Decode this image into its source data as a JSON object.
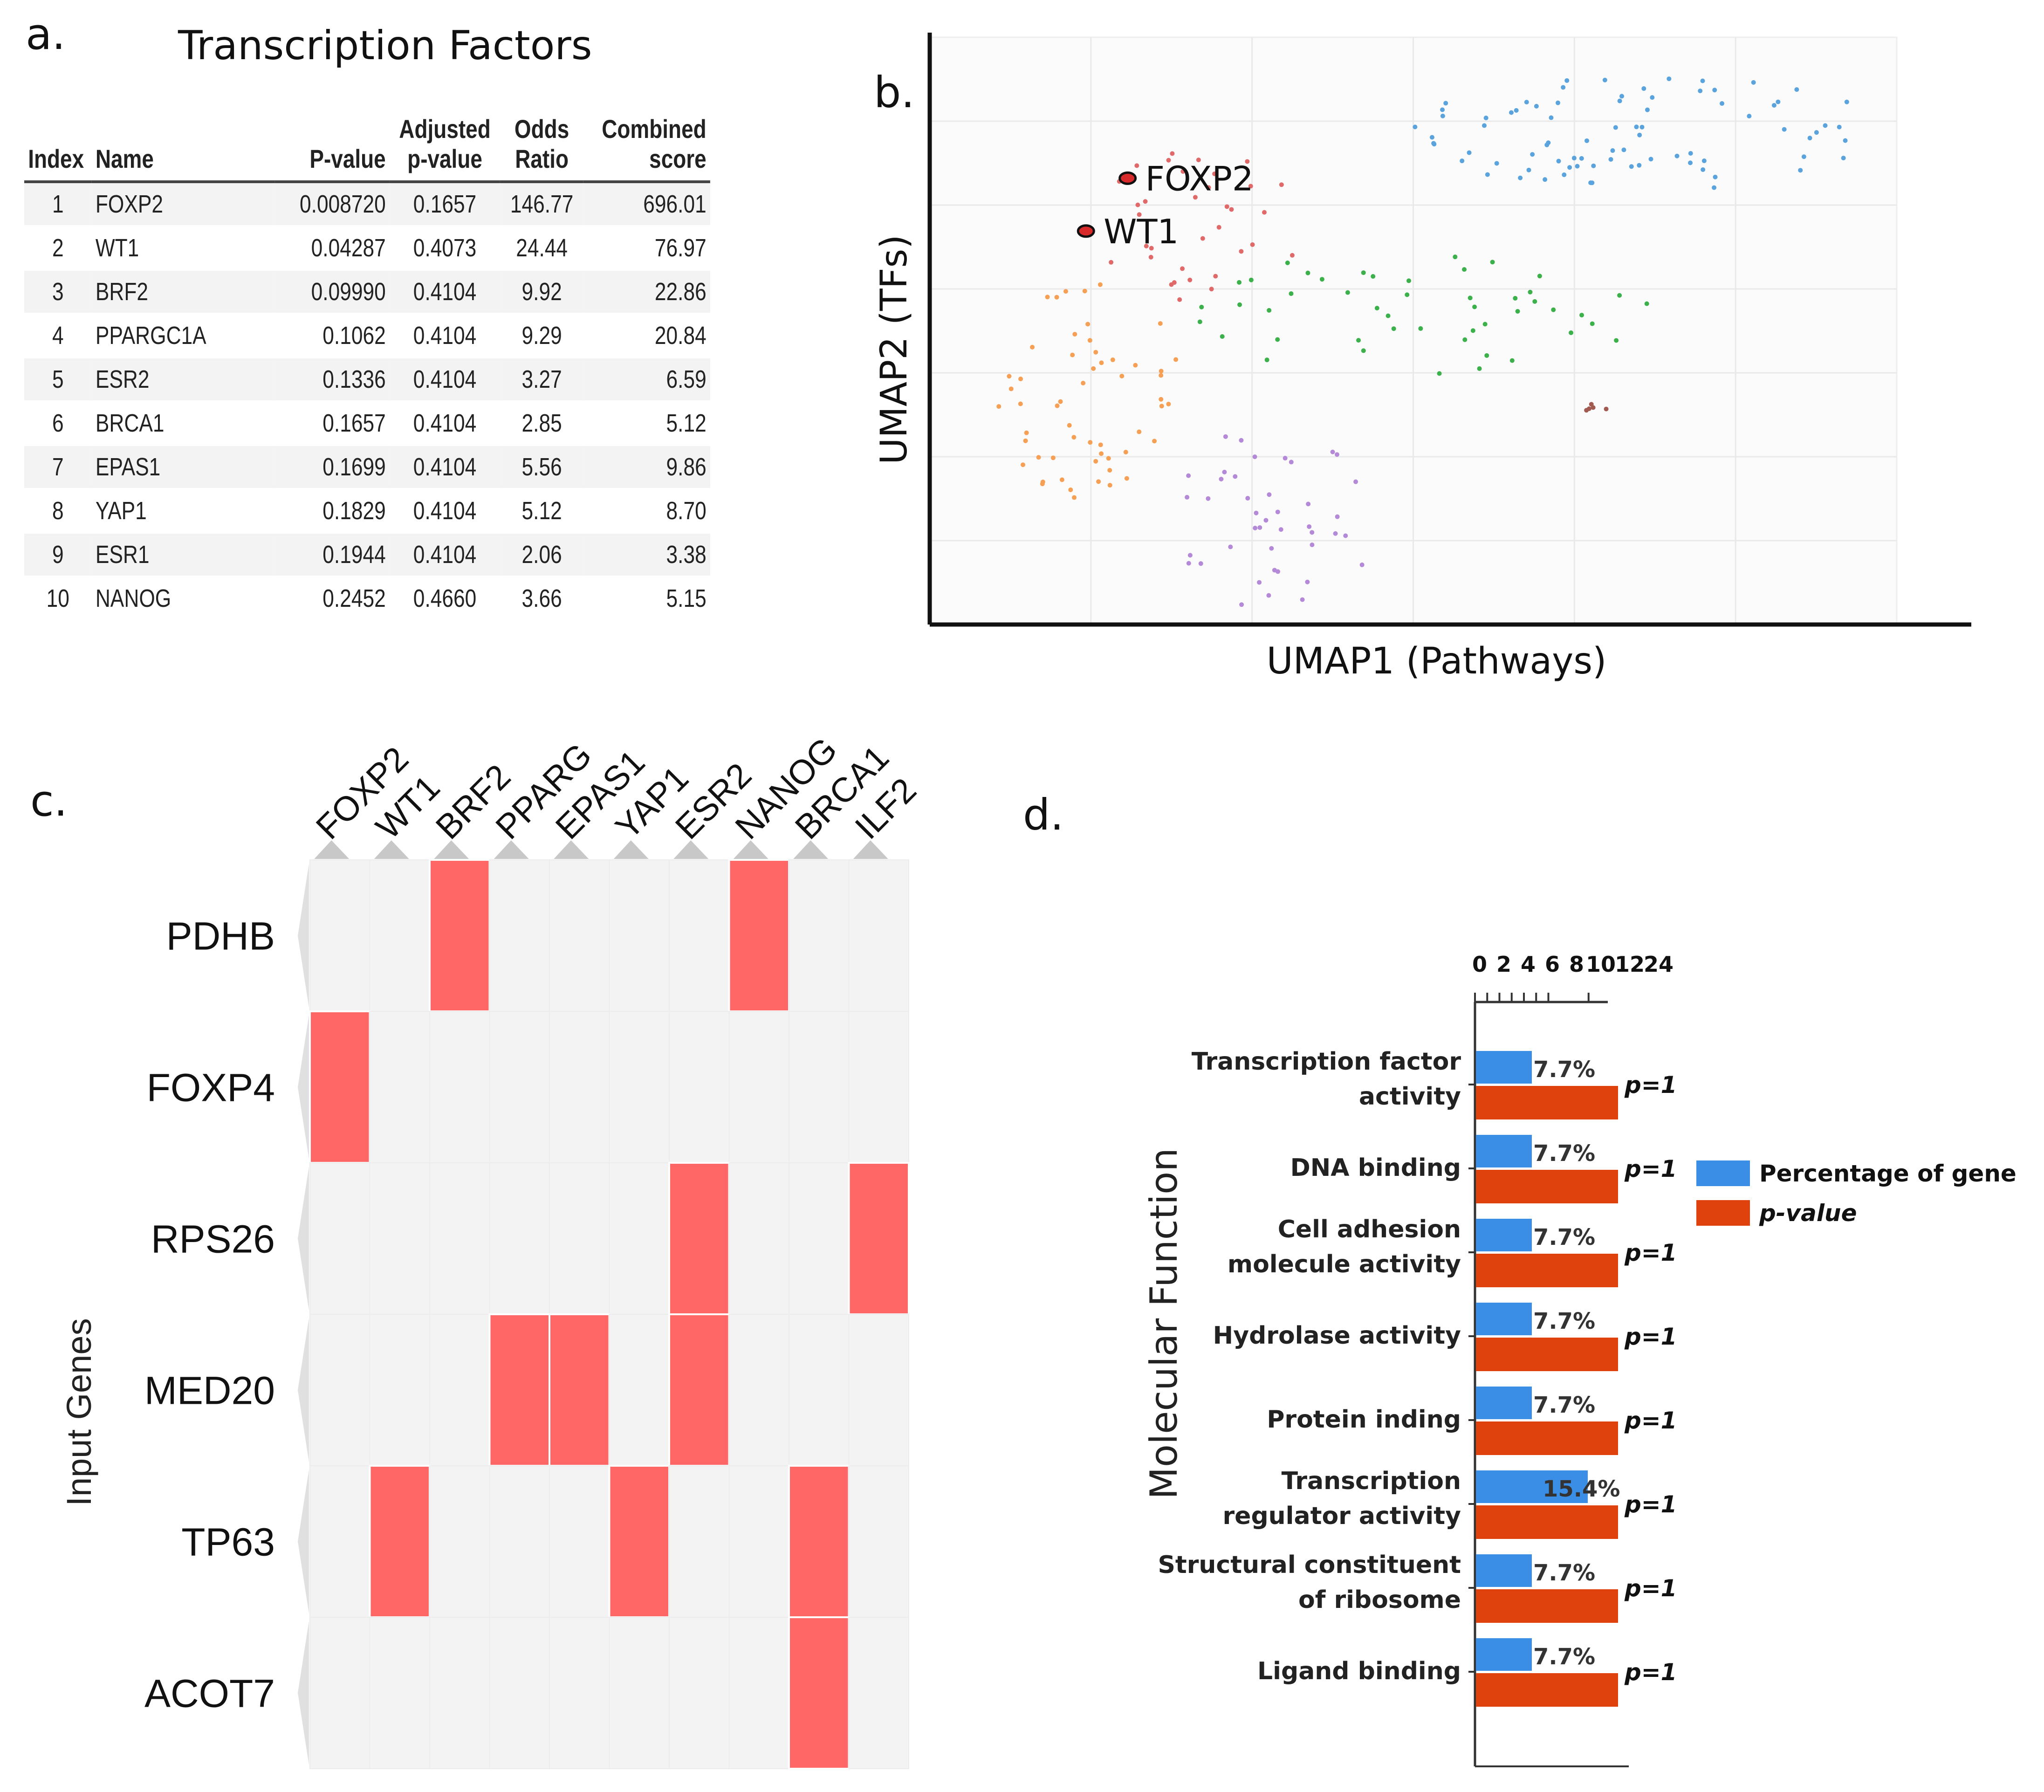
{
  "panels": {
    "a": "a.",
    "b": "b.",
    "c": "c.",
    "d": "d."
  },
  "panel_a": {
    "title": "Transcription Factors",
    "headers": {
      "index": "Index",
      "name": "Name",
      "pvalue": "P-value",
      "adj_line1": "Adjusted",
      "adj_line2": "p-value",
      "odds_line1": "Odds",
      "odds_line2": "Ratio",
      "comb_line1": "Combined",
      "comb_line2": "score"
    },
    "rows": [
      {
        "index": "1",
        "name": "FOXP2",
        "pvalue": "0.008720",
        "adj": "0.1657",
        "odds": "146.77",
        "comb": "696.01"
      },
      {
        "index": "2",
        "name": "WT1",
        "pvalue": "0.04287",
        "adj": "0.4073",
        "odds": "24.44",
        "comb": "76.97"
      },
      {
        "index": "3",
        "name": "BRF2",
        "pvalue": "0.09990",
        "adj": "0.4104",
        "odds": "9.92",
        "comb": "22.86"
      },
      {
        "index": "4",
        "name": "PPARGC1A",
        "pvalue": "0.1062",
        "adj": "0.4104",
        "odds": "9.29",
        "comb": "20.84"
      },
      {
        "index": "5",
        "name": "ESR2",
        "pvalue": "0.1336",
        "adj": "0.4104",
        "odds": "3.27",
        "comb": "6.59"
      },
      {
        "index": "6",
        "name": "BRCA1",
        "pvalue": "0.1657",
        "adj": "0.4104",
        "odds": "2.85",
        "comb": "5.12"
      },
      {
        "index": "7",
        "name": "EPAS1",
        "pvalue": "0.1699",
        "adj": "0.4104",
        "odds": "5.56",
        "comb": "9.86"
      },
      {
        "index": "8",
        "name": "YAP1",
        "pvalue": "0.1829",
        "adj": "0.4104",
        "odds": "5.12",
        "comb": "8.70"
      },
      {
        "index": "9",
        "name": "ESR1",
        "pvalue": "0.1944",
        "adj": "0.4104",
        "odds": "2.06",
        "comb": "3.38"
      },
      {
        "index": "10",
        "name": "NANOG",
        "pvalue": "0.2452",
        "adj": "0.4660",
        "odds": "3.66",
        "comb": "5.15"
      }
    ]
  },
  "chart_data": [
    {
      "type": "scatter",
      "title": "",
      "xlabel": "UMAP1 (Pathways)",
      "ylabel": "UMAP2 (TFs)",
      "xlim": [
        0,
        100
      ],
      "ylim": [
        0,
        100
      ],
      "annotations": [
        {
          "label": "FOXP2",
          "x": 19,
          "y": 76,
          "color": "#d82a2a"
        },
        {
          "label": "WT1",
          "x": 15,
          "y": 67,
          "color": "#d82a2a"
        }
      ],
      "clusters": [
        {
          "name": "blue",
          "color": "#5aa3dc",
          "cx": 69,
          "cy": 84,
          "rx": 23,
          "ry": 10,
          "n": 80
        },
        {
          "name": "red",
          "color": "#e06a6a",
          "cx": 26,
          "cy": 68,
          "rx": 10,
          "ry": 13,
          "n": 34
        },
        {
          "name": "orange",
          "color": "#f5a055",
          "cx": 15,
          "cy": 40,
          "rx": 9,
          "ry": 19,
          "n": 55
        },
        {
          "name": "green",
          "color": "#3cb04a",
          "cx": 48,
          "cy": 53,
          "rx": 23,
          "ry": 11,
          "n": 48
        },
        {
          "name": "purple",
          "color": "#b48ad8",
          "cx": 33,
          "cy": 18,
          "rx": 10,
          "ry": 16,
          "n": 42
        },
        {
          "name": "brown",
          "color": "#a05a50",
          "cx": 64,
          "cy": 37,
          "rx": 2,
          "ry": 1,
          "n": 5
        }
      ]
    },
    {
      "type": "heatmap",
      "ylabel": "Input Genes",
      "columns": [
        "FOXP2",
        "WT1",
        "BRF2",
        "PPARG",
        "EPAS1",
        "YAP1",
        "ESR2",
        "NANOG",
        "BRCA1",
        "ILF2"
      ],
      "rows": [
        "PDHB",
        "FOXP4",
        "RPS26",
        "MED20",
        "TP63",
        "ACOT7"
      ],
      "cells": [
        [
          0,
          0,
          1,
          0,
          0,
          0,
          0,
          1,
          0,
          0
        ],
        [
          1,
          0,
          0,
          0,
          0,
          0,
          0,
          0,
          0,
          0
        ],
        [
          0,
          0,
          0,
          0,
          0,
          0,
          1,
          0,
          0,
          1
        ],
        [
          0,
          0,
          0,
          1,
          1,
          0,
          1,
          0,
          0,
          0
        ],
        [
          0,
          1,
          0,
          0,
          0,
          1,
          0,
          0,
          1,
          0
        ],
        [
          0,
          0,
          0,
          0,
          0,
          0,
          0,
          0,
          1,
          0
        ]
      ],
      "colors": {
        "on": "#ff6666",
        "off": "#f3f3f3"
      }
    },
    {
      "type": "bar",
      "orientation": "horizontal",
      "ylabel": "Molecular Function",
      "xticks": [
        "0",
        "2",
        "4",
        "6",
        "8",
        "10",
        "12",
        "24"
      ],
      "categories": [
        [
          "Transcription factor",
          "activity"
        ],
        [
          "DNA binding"
        ],
        [
          "Cell adhesion",
          "molecule activity"
        ],
        [
          "Hydrolase activity"
        ],
        [
          "Protein   inding"
        ],
        [
          "Transcription",
          "regulator activity"
        ],
        [
          "Structural constituent",
          "of ribosome"
        ],
        [
          "Ligand binding"
        ]
      ],
      "series": [
        {
          "name": "Percentage of gene",
          "color": "#3a8ee6",
          "values": [
            7.7,
            7.7,
            7.7,
            7.7,
            7.7,
            15.4,
            7.7,
            7.7
          ],
          "labels": [
            "7.7%",
            "7.7%",
            "7.7%",
            "7.7%",
            "7.7%",
            "15.4%",
            "7.7%",
            "7.7%"
          ]
        },
        {
          "name": "p-value",
          "color": "#e0420e",
          "values": [
            1,
            1,
            1,
            1,
            1,
            1,
            1,
            1
          ],
          "labels": [
            "p=1",
            "p=1",
            "p=1",
            "p=1",
            "p=1",
            "p=1",
            "p=1",
            "p=1"
          ]
        }
      ],
      "legend": {
        "position": "right",
        "items": [
          {
            "label": "Percentage of gene",
            "color": "#3a8ee6"
          },
          {
            "label": "p-value",
            "color": "#e0420e"
          }
        ]
      }
    }
  ]
}
